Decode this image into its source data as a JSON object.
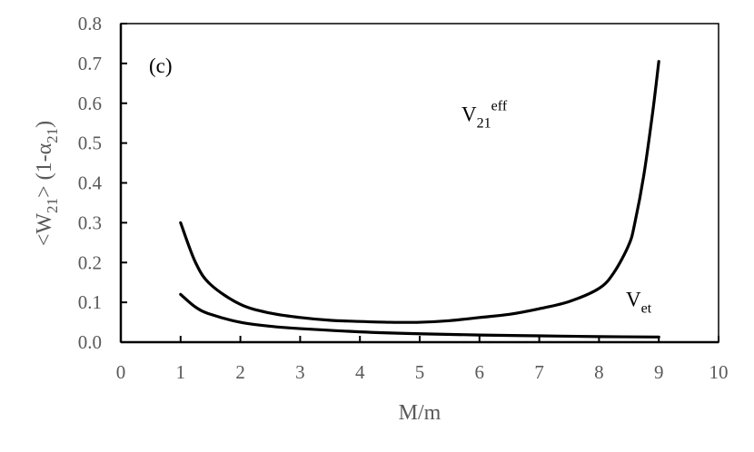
{
  "chart_data": {
    "type": "line",
    "title": "",
    "panel_label": "(c)",
    "xlabel": "M/m",
    "ylabel": "<W21> (1-α21)",
    "ylabel_parts": {
      "main": "<W",
      "sub1": "21",
      "mid": "> (1-α",
      "sub2": "21",
      "end": ")"
    },
    "xlim": [
      0,
      10
    ],
    "ylim": [
      0,
      0.8
    ],
    "xticks": [
      0,
      1,
      2,
      3,
      4,
      5,
      6,
      7,
      8,
      9,
      10
    ],
    "yticks": [
      0.0,
      0.1,
      0.2,
      0.3,
      0.4,
      0.5,
      0.6,
      0.7,
      0.8
    ],
    "ytick_labels": [
      "0.0",
      "0.1",
      "0.2",
      "0.3",
      "0.4",
      "0.5",
      "0.6",
      "0.7",
      "0.8"
    ],
    "grid": false,
    "legend": null,
    "series": [
      {
        "name": "V21eff",
        "label": {
          "main": "V",
          "sub": "21",
          "sup": "eff",
          "x": 5.7,
          "y": 0.555
        },
        "x": [
          1.0,
          1.25,
          1.5,
          2.0,
          2.5,
          3.0,
          3.5,
          4.0,
          4.5,
          5.0,
          5.5,
          6.0,
          6.5,
          7.0,
          7.5,
          8.0,
          8.25,
          8.5,
          8.6,
          8.75,
          8.9,
          9.0
        ],
        "y": [
          0.3,
          0.2,
          0.145,
          0.095,
          0.073,
          0.062,
          0.055,
          0.052,
          0.05,
          0.05,
          0.054,
          0.062,
          0.07,
          0.084,
          0.102,
          0.135,
          0.175,
          0.245,
          0.3,
          0.42,
          0.58,
          0.705
        ]
      },
      {
        "name": "Vet",
        "label": {
          "main": "V",
          "sub": "et",
          "x": 8.45,
          "y": 0.09
        },
        "x": [
          1.0,
          1.25,
          1.5,
          2.0,
          2.5,
          3.0,
          4.0,
          5.0,
          6.0,
          7.0,
          8.0,
          9.0
        ],
        "y": [
          0.12,
          0.088,
          0.07,
          0.05,
          0.04,
          0.034,
          0.026,
          0.021,
          0.018,
          0.016,
          0.014,
          0.013
        ]
      }
    ]
  }
}
